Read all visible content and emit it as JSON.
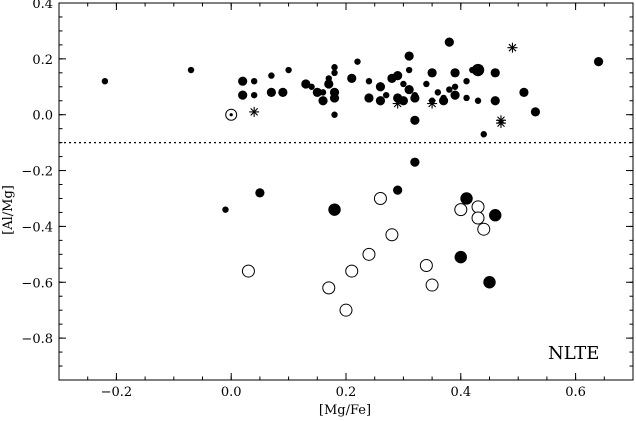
{
  "chart_data": {
    "type": "scatter",
    "title": "",
    "xlabel": "[Mg/Fe]",
    "ylabel": "[Al/Mg]",
    "annotation": "NLTE",
    "xlim": [
      -0.3,
      0.7
    ],
    "ylim": [
      -0.95,
      0.4
    ],
    "xticks": [
      -0.2,
      0.0,
      0.2,
      0.4,
      0.6
    ],
    "xtick_labels": [
      "−0.2",
      "0.0",
      "0.2",
      "0.4",
      "0.6"
    ],
    "yticks": [
      -0.8,
      -0.6,
      -0.4,
      -0.2,
      0.0,
      0.2,
      0.4
    ],
    "ytick_labels": [
      "−0.8",
      "−0.6",
      "−0.4",
      "−0.2",
      "0.0",
      "0.2",
      "0.4"
    ],
    "grid": false,
    "reference_line": {
      "y": -0.1,
      "style": "dotted"
    },
    "series": [
      {
        "marker": "small-filled",
        "points": [
          [
            -0.22,
            0.12
          ],
          [
            -0.07,
            0.16
          ],
          [
            -0.01,
            -0.34
          ],
          [
            0.04,
            0.12
          ],
          [
            0.04,
            0.07
          ],
          [
            0.07,
            0.14
          ],
          [
            0.1,
            0.16
          ],
          [
            0.14,
            0.1
          ],
          [
            0.16,
            0.08
          ],
          [
            0.17,
            0.13
          ],
          [
            0.18,
            0.15
          ],
          [
            0.18,
            0.17
          ],
          [
            0.18,
            0.0
          ],
          [
            0.22,
            0.19
          ],
          [
            0.24,
            0.12
          ],
          [
            0.27,
            0.07
          ],
          [
            0.3,
            0.11
          ],
          [
            0.31,
            0.16
          ],
          [
            0.32,
            0.07
          ],
          [
            0.34,
            0.11
          ],
          [
            0.35,
            0.05
          ],
          [
            0.36,
            0.08
          ],
          [
            0.37,
            0.06
          ],
          [
            0.38,
            0.09
          ],
          [
            0.39,
            0.1
          ],
          [
            0.41,
            0.12
          ],
          [
            0.41,
            0.06
          ],
          [
            0.42,
            0.16
          ],
          [
            0.43,
            0.05
          ],
          [
            0.44,
            -0.07
          ]
        ]
      },
      {
        "marker": "medium-filled",
        "points": [
          [
            0.02,
            0.12
          ],
          [
            0.02,
            0.07
          ],
          [
            0.05,
            -0.28
          ],
          [
            0.07,
            0.08
          ],
          [
            0.09,
            0.08
          ],
          [
            0.13,
            0.11
          ],
          [
            0.15,
            0.08
          ],
          [
            0.16,
            0.05
          ],
          [
            0.17,
            0.11
          ],
          [
            0.18,
            0.08
          ],
          [
            0.18,
            0.06
          ],
          [
            0.21,
            0.13
          ],
          [
            0.24,
            0.06
          ],
          [
            0.26,
            0.1
          ],
          [
            0.26,
            0.05
          ],
          [
            0.28,
            0.13
          ],
          [
            0.29,
            0.14
          ],
          [
            0.29,
            0.06
          ],
          [
            0.29,
            -0.27
          ],
          [
            0.3,
            0.05
          ],
          [
            0.31,
            0.21
          ],
          [
            0.31,
            0.09
          ],
          [
            0.32,
            0.06
          ],
          [
            0.32,
            -0.02
          ],
          [
            0.32,
            -0.17
          ],
          [
            0.35,
            0.15
          ],
          [
            0.37,
            0.05
          ],
          [
            0.38,
            0.26
          ],
          [
            0.39,
            0.15
          ],
          [
            0.39,
            0.07
          ],
          [
            0.46,
            0.15
          ],
          [
            0.46,
            0.05
          ],
          [
            0.51,
            0.08
          ],
          [
            0.53,
            0.01
          ],
          [
            0.64,
            0.19
          ]
        ]
      },
      {
        "marker": "large-filled",
        "points": [
          [
            0.18,
            -0.34
          ],
          [
            0.4,
            -0.51
          ],
          [
            0.41,
            -0.3
          ],
          [
            0.43,
            0.16
          ],
          [
            0.45,
            -0.6
          ],
          [
            0.46,
            -0.36
          ]
        ]
      },
      {
        "marker": "open-circle",
        "points": [
          [
            0.03,
            -0.56
          ],
          [
            0.17,
            -0.62
          ],
          [
            0.2,
            -0.7
          ],
          [
            0.21,
            -0.56
          ],
          [
            0.24,
            -0.5
          ],
          [
            0.26,
            -0.3
          ],
          [
            0.28,
            -0.43
          ],
          [
            0.34,
            -0.54
          ],
          [
            0.35,
            -0.61
          ],
          [
            0.4,
            -0.34
          ],
          [
            0.43,
            -0.33
          ],
          [
            0.43,
            -0.37
          ],
          [
            0.44,
            -0.41
          ]
        ]
      },
      {
        "marker": "asterisk",
        "points": [
          [
            0.04,
            0.01
          ],
          [
            0.29,
            0.04
          ],
          [
            0.35,
            0.04
          ],
          [
            0.47,
            -0.02
          ],
          [
            0.47,
            -0.03
          ],
          [
            0.49,
            0.24
          ]
        ]
      },
      {
        "marker": "sun",
        "points": [
          [
            0.0,
            0.0
          ]
        ]
      }
    ]
  }
}
